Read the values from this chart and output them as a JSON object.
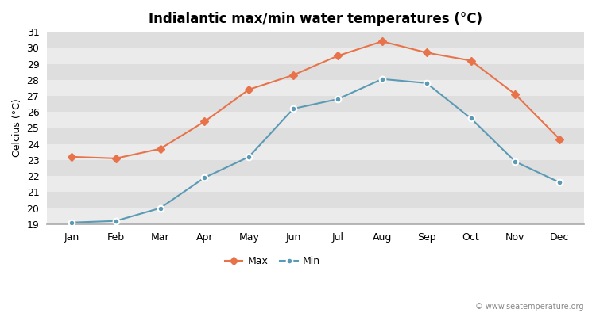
{
  "title": "Indialantic max/min water temperatures (°C)",
  "ylabel": "Celcius (°C)",
  "months": [
    "Jan",
    "Feb",
    "Mar",
    "Apr",
    "May",
    "Jun",
    "Jul",
    "Aug",
    "Sep",
    "Oct",
    "Nov",
    "Dec"
  ],
  "max_temps": [
    23.2,
    23.1,
    23.7,
    25.4,
    27.4,
    28.3,
    29.5,
    30.4,
    29.7,
    29.2,
    27.1,
    24.3
  ],
  "min_temps": [
    19.1,
    19.2,
    20.0,
    21.9,
    23.2,
    26.2,
    26.8,
    28.05,
    27.8,
    25.6,
    22.9,
    21.6
  ],
  "max_color": "#e8734a",
  "min_color": "#5b9ab5",
  "background_light": "#ebebeb",
  "background_dark": "#dedede",
  "ylim": [
    19,
    31
  ],
  "yticks": [
    19,
    20,
    21,
    22,
    23,
    24,
    25,
    26,
    27,
    28,
    29,
    30,
    31
  ],
  "watermark": "© www.seatemperature.org",
  "legend_max": "Max",
  "legend_min": "Min",
  "fig_bg": "#ffffff"
}
